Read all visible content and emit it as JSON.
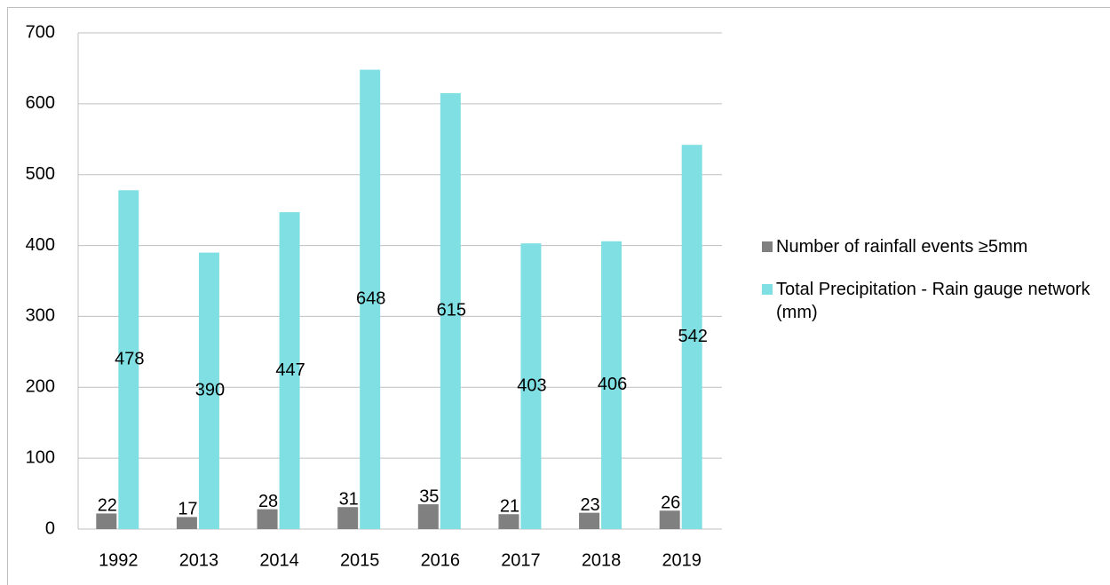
{
  "chart_data": {
    "type": "bar",
    "categories": [
      "1992",
      "2013",
      "2014",
      "2015",
      "2016",
      "2017",
      "2018",
      "2019"
    ],
    "series": [
      {
        "name": "Number of rainfall events ≥5mm",
        "color": "#808080",
        "values": [
          22,
          17,
          28,
          31,
          35,
          21,
          23,
          26
        ]
      },
      {
        "name": "Total Precipitation - Rain gauge network (mm)",
        "color": "#7fdfe3",
        "values": [
          478,
          390,
          447,
          648,
          615,
          403,
          406,
          542
        ]
      }
    ],
    "ylim": [
      0,
      700
    ],
    "yticks": [
      0,
      100,
      200,
      300,
      400,
      500,
      600,
      700
    ],
    "grid": true,
    "legend": "right"
  }
}
